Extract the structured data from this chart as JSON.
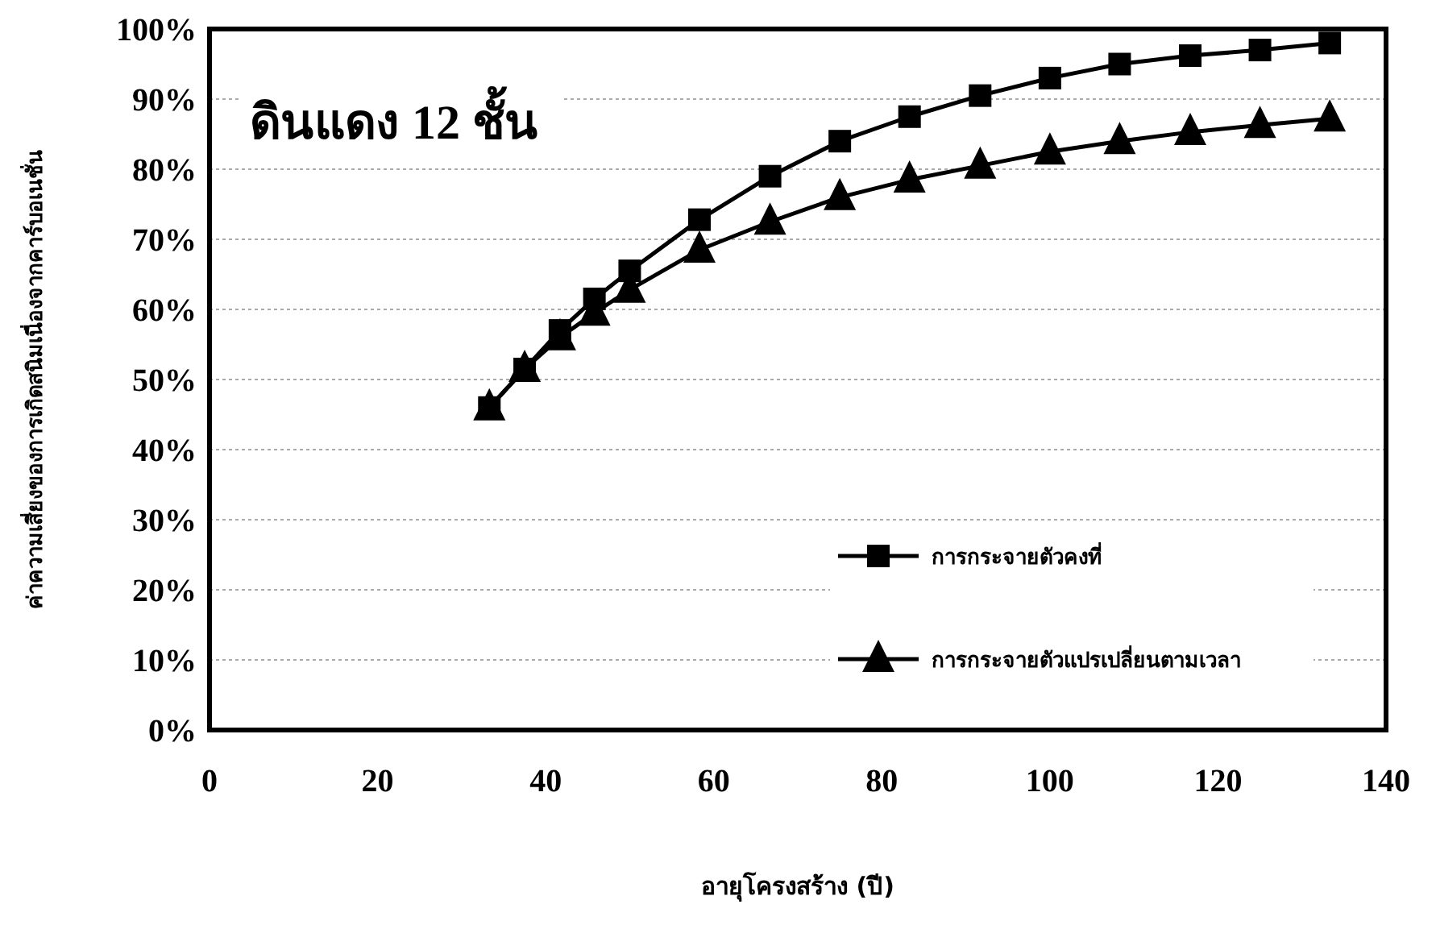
{
  "chart_data": {
    "type": "line",
    "title": "ดินแดง 12 ชั้น",
    "xlabel": "อายุโครงสร้าง (ปี)",
    "ylabel": "ค่าความเสี่ยงของการเกิดสนิมเนื่องจากคาร์บอเนชั่น",
    "x": [
      33.3,
      37.5,
      41.7,
      45.8,
      50,
      58.3,
      66.7,
      75,
      83.3,
      91.7,
      100,
      108.3,
      116.7,
      125,
      133.3
    ],
    "series": [
      {
        "name": "การกระจายตัวคงที่",
        "color": "#000000",
        "marker": "square",
        "values": [
          46,
          51.5,
          57,
          61.5,
          65.5,
          72.8,
          79,
          84,
          87.5,
          90.5,
          93,
          95,
          96.2,
          97,
          98
        ]
      },
      {
        "name": "การกระจายตัวแปรเปลี่ยนตามเวลา",
        "color": "#000000",
        "marker": "triangle",
        "values": [
          46,
          51.5,
          56,
          59.5,
          62.8,
          68.5,
          72.5,
          76,
          78.5,
          80.5,
          82.5,
          84,
          85.3,
          86.3,
          87.2
        ]
      }
    ],
    "xlim": [
      0,
      140
    ],
    "xticks": [
      0,
      20,
      40,
      60,
      80,
      100,
      120,
      140
    ],
    "ylim": [
      0,
      100
    ],
    "yticks": [
      {
        "value": 0,
        "label": "0%"
      },
      {
        "value": 10,
        "label": "10%"
      },
      {
        "value": 20,
        "label": "20%"
      },
      {
        "value": 30,
        "label": "30%"
      },
      {
        "value": 40,
        "label": "40%"
      },
      {
        "value": 50,
        "label": "50%"
      },
      {
        "value": 60,
        "label": "60%"
      },
      {
        "value": 70,
        "label": "70%"
      },
      {
        "value": 80,
        "label": "80%"
      },
      {
        "value": 90,
        "label": "90%"
      },
      {
        "value": 100,
        "label": "100%"
      }
    ],
    "grid": "y",
    "legend": "bottom right",
    "line_style": "solid"
  }
}
